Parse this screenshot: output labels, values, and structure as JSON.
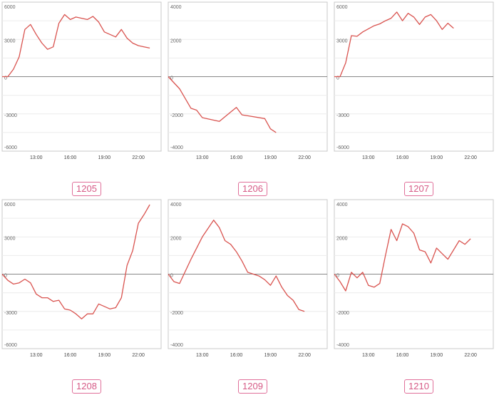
{
  "colors": {
    "line": "#d9534f",
    "zero": "#888888",
    "grid": "#ececec",
    "frame": "#c8c8c8",
    "badge": "#e0709a"
  },
  "chart_data": [
    {
      "type": "line",
      "label": "1205",
      "xticks": [
        "13:00",
        "16:00",
        "19:00",
        "22:00"
      ],
      "yticks": [
        "6000",
        "3000",
        "0",
        "-3000",
        "-6000"
      ],
      "ylim": [
        -6000,
        6000
      ],
      "x": [
        10,
        10.5,
        11,
        11.5,
        12,
        12.5,
        13,
        13.5,
        14,
        14.5,
        15,
        15.5,
        16,
        16.5,
        17,
        17.5,
        18,
        18.5,
        19,
        19.5,
        20,
        20.5,
        21,
        21.5,
        22,
        22.5,
        23
      ],
      "values": [
        0,
        0,
        600,
        1600,
        3800,
        4200,
        3400,
        2700,
        2200,
        2400,
        4300,
        5000,
        4600,
        4800,
        4700,
        4600,
        4850,
        4400,
        3600,
        3400,
        3200,
        3800,
        3100,
        2700,
        2500,
        2400,
        2300
      ]
    },
    {
      "type": "line",
      "label": "1206",
      "xticks": [
        "13:00",
        "16:00",
        "19:00",
        "22:00"
      ],
      "yticks": [
        "4000",
        "2000",
        "0",
        "-2000",
        "-4000"
      ],
      "ylim": [
        -4000,
        4000
      ],
      "x": [
        10,
        11,
        12,
        12.5,
        13,
        14.5,
        15.5,
        16,
        16.5,
        17,
        18.5,
        19,
        19.5
      ],
      "values": [
        0,
        -650,
        -1700,
        -1800,
        -2200,
        -2400,
        -1900,
        -1650,
        -2050,
        -2100,
        -2250,
        -2800,
        -3000
      ]
    },
    {
      "type": "line",
      "label": "1207",
      "xticks": [
        "13:00",
        "16:00",
        "19:00",
        "22:00"
      ],
      "yticks": [
        "6000",
        "3000",
        "0",
        "-3000",
        "-6000"
      ],
      "ylim": [
        -6000,
        6000
      ],
      "x": [
        10,
        10.5,
        11,
        11.5,
        12,
        12.5,
        13,
        13.5,
        14,
        14.5,
        15,
        15.5,
        16,
        16.5,
        17,
        17.5,
        18,
        18.5,
        19,
        19.5,
        20,
        20.5
      ],
      "values": [
        0,
        0,
        1100,
        3300,
        3250,
        3600,
        3850,
        4100,
        4250,
        4500,
        4700,
        5200,
        4500,
        5100,
        4800,
        4200,
        4800,
        5000,
        4500,
        3800,
        4300,
        3900
      ]
    },
    {
      "type": "line",
      "label": "1208",
      "xticks": [
        "13:00",
        "16:00",
        "19:00",
        "22:00"
      ],
      "yticks": [
        "6000",
        "3000",
        "0",
        "-3000",
        "-6000"
      ],
      "ylim": [
        -6000,
        6000
      ],
      "x": [
        10,
        10.5,
        11,
        11.5,
        12,
        12.5,
        13,
        13.5,
        14,
        14.5,
        15,
        15.5,
        16,
        16.5,
        17,
        17.5,
        18,
        18.5,
        19,
        19.5,
        20,
        20.5,
        21,
        21.5,
        22,
        22.5,
        23
      ],
      "values": [
        0,
        -500,
        -800,
        -700,
        -400,
        -700,
        -1600,
        -1900,
        -1900,
        -2200,
        -2100,
        -2800,
        -2900,
        -3200,
        -3600,
        -3200,
        -3200,
        -2400,
        -2600,
        -2800,
        -2700,
        -1900,
        700,
        1900,
        4100,
        4800,
        5600
      ]
    },
    {
      "type": "line",
      "label": "1209",
      "xticks": [
        "13:00",
        "16:00",
        "19:00",
        "22:00"
      ],
      "yticks": [
        "4000",
        "2000",
        "0",
        "-2000",
        "-4000"
      ],
      "ylim": [
        -4000,
        4000
      ],
      "x": [
        10,
        10.5,
        11,
        12,
        13,
        14,
        14.5,
        15,
        15.5,
        16,
        16.5,
        17,
        17.5,
        18,
        18.5,
        19,
        19.5,
        20,
        20.5,
        21,
        21.5,
        22
      ],
      "values": [
        0,
        -400,
        -500,
        800,
        2000,
        2900,
        2500,
        1800,
        1600,
        1200,
        700,
        100,
        0,
        -100,
        -300,
        -600,
        -100,
        -700,
        -1150,
        -1400,
        -1900,
        -2000
      ]
    },
    {
      "type": "line",
      "label": "1210",
      "xticks": [
        "13:00",
        "16:00",
        "19:00",
        "22:00"
      ],
      "yticks": [
        "4000",
        "2000",
        "0",
        "-2000",
        "-4000"
      ],
      "ylim": [
        -4000,
        4000
      ],
      "x": [
        10,
        10.5,
        11,
        11.5,
        12,
        12.5,
        13,
        13.5,
        14,
        14.5,
        15,
        15.5,
        16,
        16.5,
        17,
        17.5,
        18,
        18.5,
        19,
        19.5,
        20,
        20.5,
        21,
        21.5,
        22
      ],
      "values": [
        0,
        -400,
        -900,
        100,
        -200,
        100,
        -600,
        -700,
        -500,
        1000,
        2400,
        1800,
        2700,
        2550,
        2200,
        1300,
        1200,
        600,
        1400,
        1100,
        800,
        1300,
        1800,
        1600,
        1900
      ]
    }
  ]
}
